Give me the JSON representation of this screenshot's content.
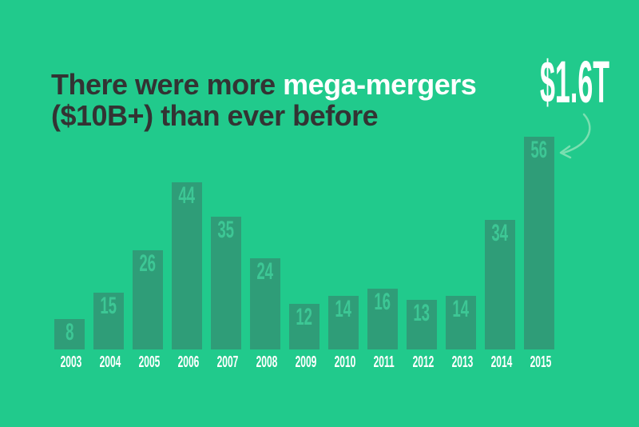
{
  "title": {
    "prefix": "There were more ",
    "highlight": "mega-mergers",
    "line2": "($10B+) than ever before"
  },
  "annotation": {
    "label": "$1.6T",
    "points_to": "2015"
  },
  "colors": {
    "background": "#21ca8c",
    "bar": "#2f9d78",
    "bar_value_label": "#3dc795",
    "title_dark": "#333333",
    "title_highlight": "#ffffff",
    "year_label": "#ffffff",
    "arrow": "#7adfb0"
  },
  "chart_data": {
    "type": "bar",
    "title": "There were more mega-mergers ($10B+) than ever before",
    "categories": [
      "2003",
      "2004",
      "2005",
      "2006",
      "2007",
      "2008",
      "2009",
      "2010",
      "2011",
      "2012",
      "2013",
      "2014",
      "2015"
    ],
    "values": [
      8,
      15,
      26,
      44,
      35,
      24,
      12,
      14,
      16,
      13,
      14,
      34,
      56
    ],
    "xlabel": "",
    "ylabel": "",
    "ylim": [
      0,
      56
    ],
    "grid": false,
    "legend": false,
    "value_labels_position": "inside-top",
    "annotation_text": "$1.6T"
  }
}
